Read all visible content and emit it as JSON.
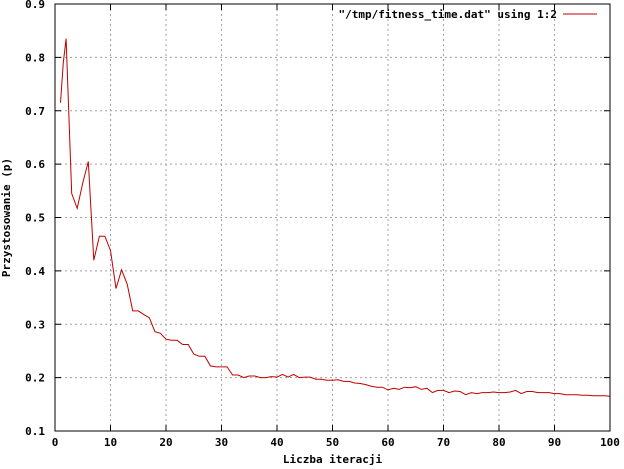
{
  "chart_data": {
    "type": "line",
    "xlabel": "Liczba iteracji",
    "ylabel": "Przystosowanie (p)",
    "xlim": [
      0,
      100
    ],
    "ylim": [
      0.1,
      0.9
    ],
    "x_ticks": [
      0,
      10,
      20,
      30,
      40,
      50,
      60,
      70,
      80,
      90,
      100
    ],
    "y_ticks": [
      0.1,
      0.2,
      0.3,
      0.4,
      0.5,
      0.6,
      0.7,
      0.8,
      0.9
    ],
    "x_tick_labels": [
      "0",
      "10",
      "20",
      "30",
      "40",
      "50",
      "60",
      "70",
      "80",
      "90",
      "100"
    ],
    "y_tick_labels": [
      "0.1",
      "0.2",
      "0.3",
      "0.4",
      "0.5",
      "0.6",
      "0.7",
      "0.8",
      "0.9"
    ],
    "grid": true,
    "legend_position": "top-right",
    "series": [
      {
        "name": "\"/tmp/fitness_time.dat\" using 1:2",
        "color": "#c00000",
        "x": [
          1,
          1.5,
          2,
          3,
          4,
          5,
          6,
          7,
          8,
          9,
          10,
          11,
          12,
          13,
          14,
          15,
          16,
          17,
          18,
          19,
          20,
          21,
          22,
          23,
          24,
          25,
          26,
          27,
          28,
          29,
          30,
          31,
          32,
          33,
          34,
          35,
          36,
          37,
          38,
          39,
          40,
          41,
          42,
          43,
          44,
          45,
          46,
          47,
          48,
          49,
          50,
          51,
          52,
          53,
          54,
          55,
          56,
          57,
          58,
          59,
          60,
          61,
          62,
          63,
          64,
          65,
          66,
          67,
          68,
          69,
          70,
          71,
          72,
          73,
          74,
          75,
          76,
          77,
          78,
          79,
          80,
          81,
          82,
          83,
          84,
          85,
          86,
          87,
          88,
          89,
          90,
          91,
          92,
          93,
          94,
          95,
          96,
          97,
          98,
          99,
          100
        ],
        "y": [
          0.715,
          0.79,
          0.835,
          0.545,
          0.517,
          0.565,
          0.605,
          0.42,
          0.465,
          0.465,
          0.438,
          0.367,
          0.402,
          0.375,
          0.325,
          0.325,
          0.318,
          0.312,
          0.286,
          0.283,
          0.272,
          0.27,
          0.27,
          0.262,
          0.262,
          0.244,
          0.24,
          0.24,
          0.222,
          0.22,
          0.22,
          0.22,
          0.205,
          0.205,
          0.2,
          0.203,
          0.203,
          0.2,
          0.2,
          0.202,
          0.201,
          0.206,
          0.201,
          0.206,
          0.2,
          0.201,
          0.201,
          0.197,
          0.197,
          0.195,
          0.195,
          0.196,
          0.193,
          0.193,
          0.19,
          0.189,
          0.187,
          0.184,
          0.182,
          0.182,
          0.177,
          0.18,
          0.178,
          0.182,
          0.181,
          0.183,
          0.178,
          0.18,
          0.172,
          0.176,
          0.176,
          0.172,
          0.175,
          0.174,
          0.168,
          0.172,
          0.17,
          0.172,
          0.172,
          0.173,
          0.172,
          0.172,
          0.173,
          0.176,
          0.17,
          0.174,
          0.174,
          0.172,
          0.172,
          0.172,
          0.17,
          0.17,
          0.168,
          0.168,
          0.168,
          0.167,
          0.167,
          0.166,
          0.166,
          0.166,
          0.165
        ]
      }
    ]
  }
}
